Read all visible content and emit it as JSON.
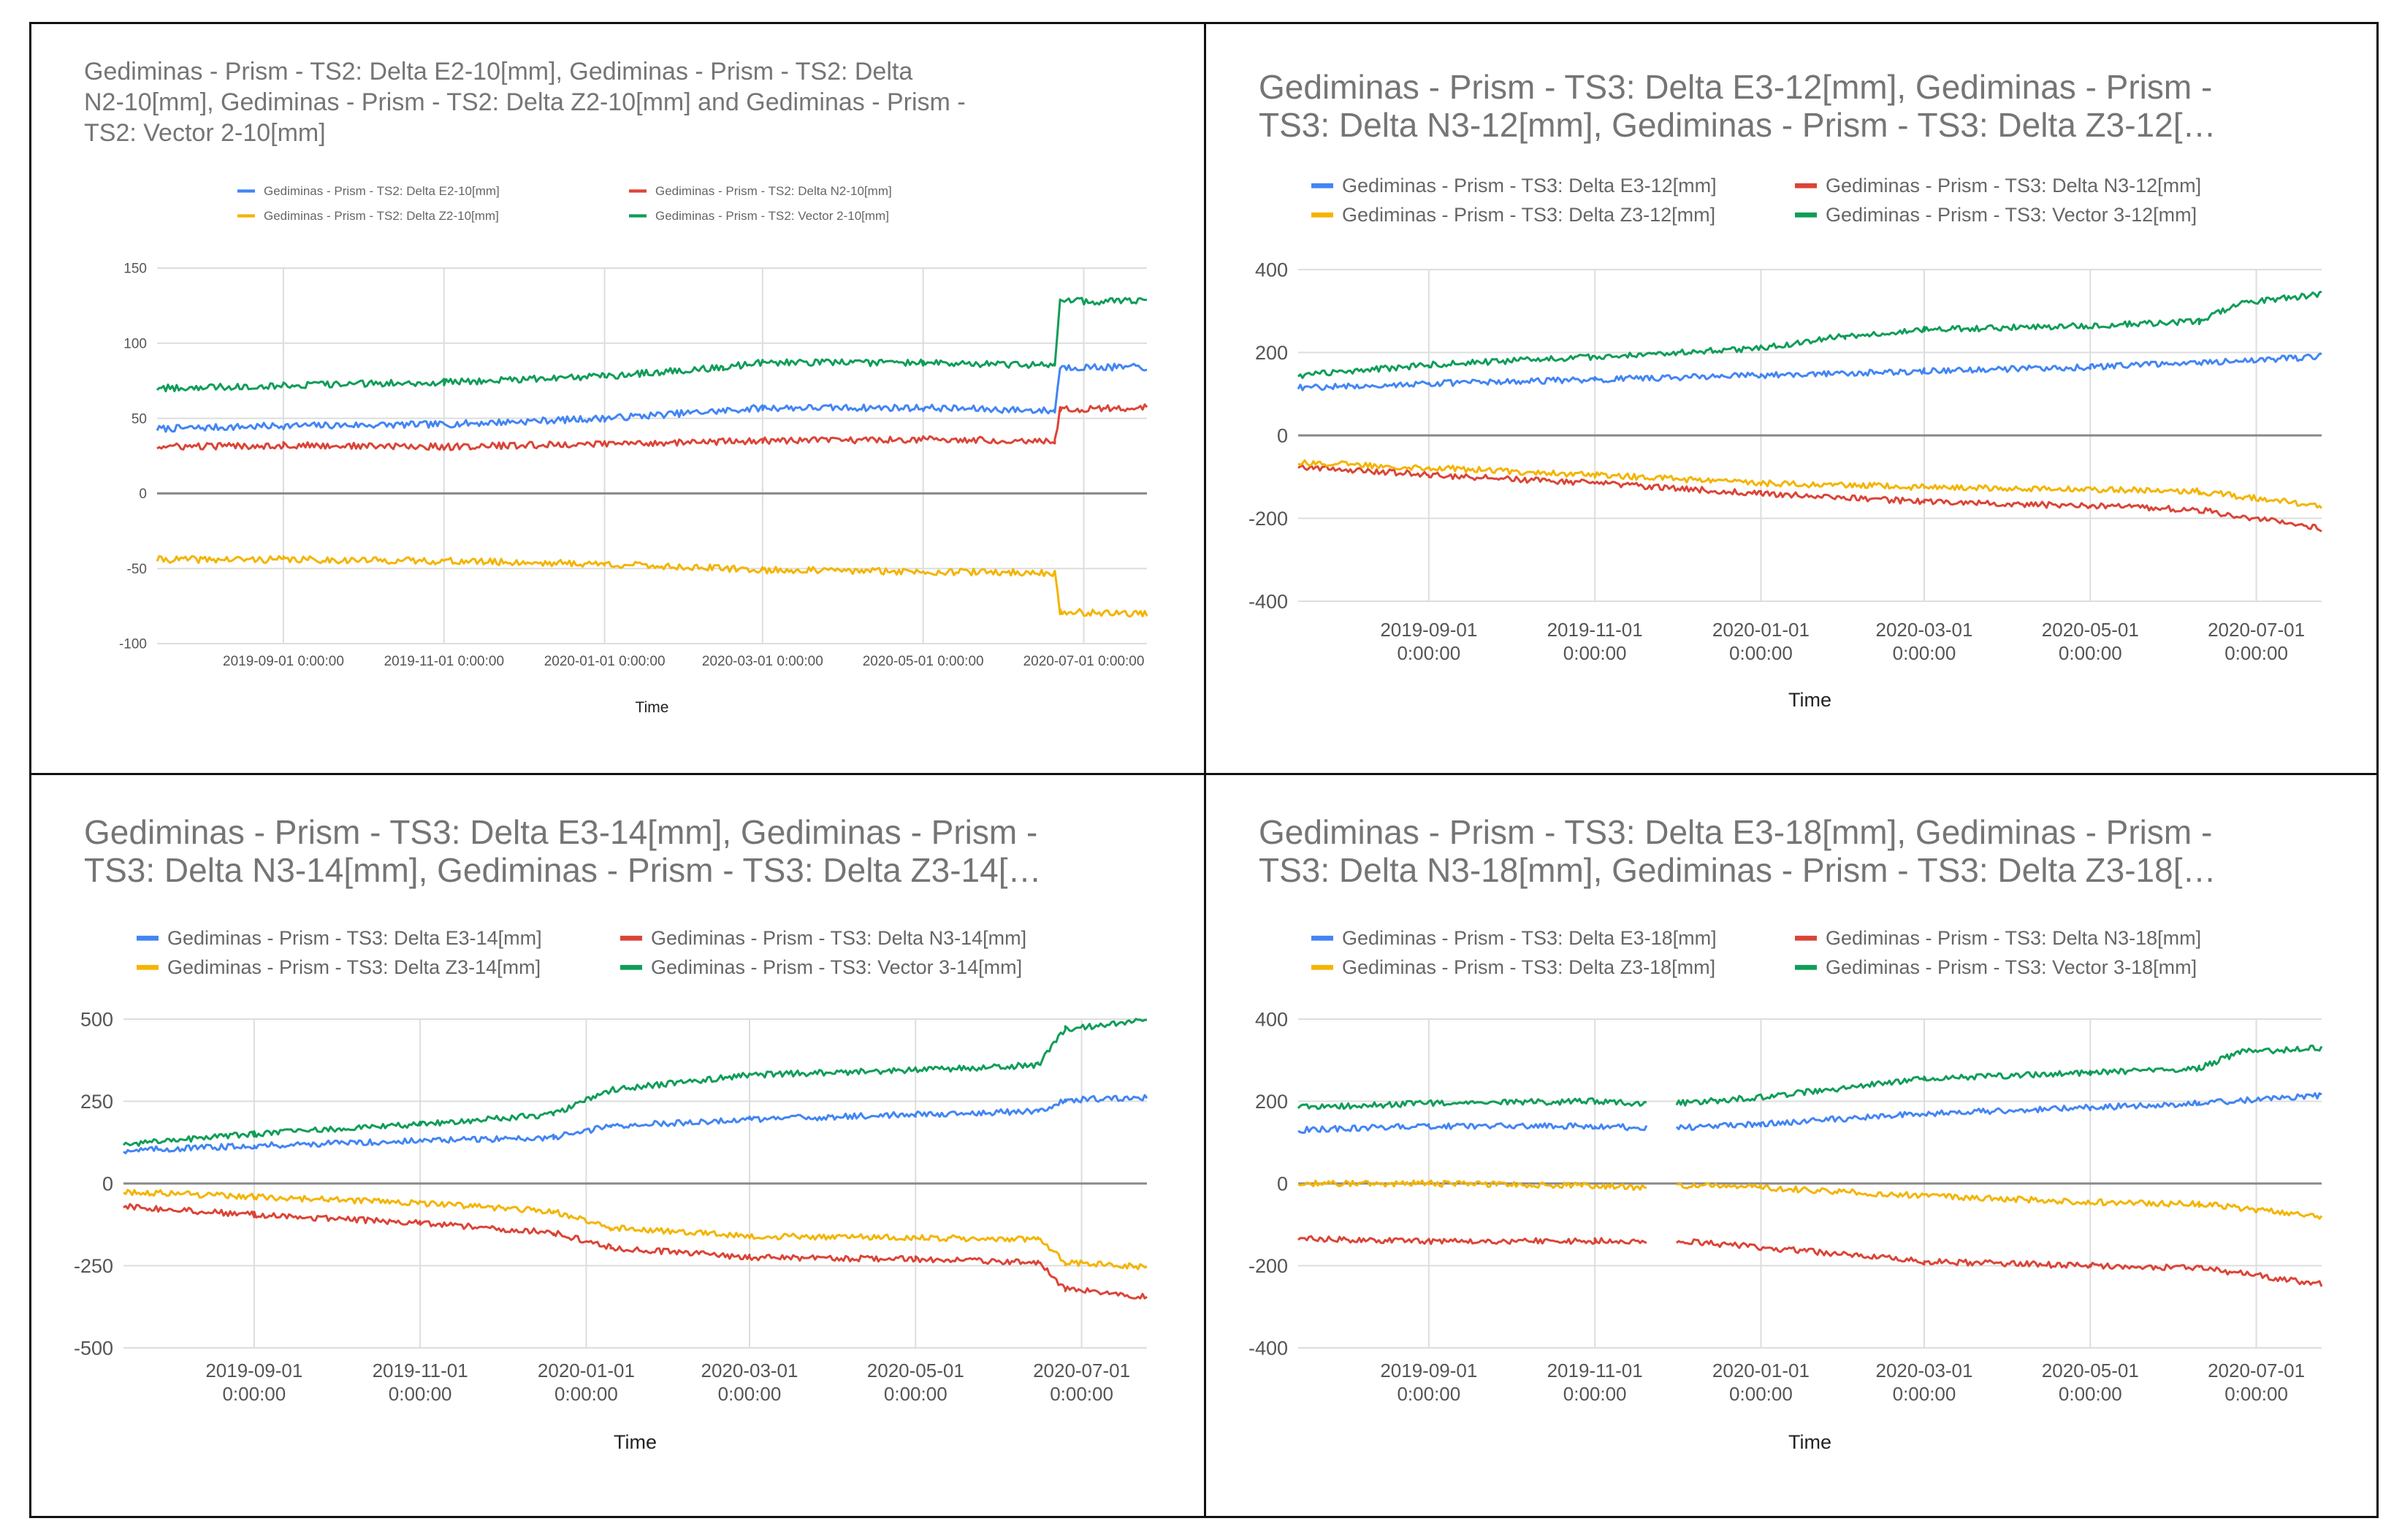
{
  "colors": {
    "blue": "#4285f4",
    "red": "#db4437",
    "yellow": "#f4b400",
    "green": "#0f9d58",
    "grid": "#dddddd",
    "zero": "#888888"
  },
  "chart_data": [
    {
      "type": "line",
      "title_lines": [
        "Gediminas - Prism - TS2: Delta E2-10[mm], Gediminas - Prism - TS2: Delta",
        "N2-10[mm], Gediminas - Prism - TS2: Delta Z2-10[mm] and Gediminas - Prism -",
        "TS2: Vector 2-10[mm]"
      ],
      "xlabel": "Time",
      "x_tick_lines": [
        [
          "2019-09-01 0:00:00"
        ],
        [
          "2019-11-01 0:00:00"
        ],
        [
          "2020-01-01 0:00:00"
        ],
        [
          "2020-03-01 0:00:00"
        ],
        [
          "2020-05-01 0:00:00"
        ],
        [
          "2020-07-01 0:00:00"
        ]
      ],
      "yticks": [
        "150",
        "100",
        "50",
        "0",
        "-50",
        "-100"
      ],
      "ylim": [
        -100,
        150
      ],
      "xlim": [
        "2019-07-15",
        "2020-07-25"
      ],
      "legend_position": "top",
      "series": [
        {
          "name": "Gediminas - Prism - TS2: Delta E2-10[mm]",
          "color": "blue",
          "x": [
            "2019-07-15",
            "2019-09-01",
            "2019-11-01",
            "2020-01-01",
            "2020-02-15",
            "2020-03-01",
            "2020-05-01",
            "2020-06-20",
            "2020-06-22",
            "2020-07-25"
          ],
          "y": [
            43,
            45,
            46,
            50,
            55,
            57,
            57,
            55,
            84,
            84
          ]
        },
        {
          "name": "Gediminas - Prism - TS2: Delta N2-10[mm]",
          "color": "red",
          "x": [
            "2019-07-15",
            "2019-09-01",
            "2019-11-01",
            "2020-01-01",
            "2020-03-01",
            "2020-05-01",
            "2020-06-20",
            "2020-06-22",
            "2020-07-25"
          ],
          "y": [
            31,
            32,
            31,
            33,
            35,
            36,
            35,
            56,
            57
          ]
        },
        {
          "name": "Gediminas - Prism - TS2: Delta Z2-10[mm]",
          "color": "yellow",
          "x": [
            "2019-07-15",
            "2019-09-01",
            "2019-11-01",
            "2020-01-01",
            "2020-03-01",
            "2020-05-01",
            "2020-06-20",
            "2020-06-22",
            "2020-07-25"
          ],
          "y": [
            -44,
            -44,
            -45,
            -47,
            -51,
            -52,
            -53,
            -79,
            -80
          ]
        },
        {
          "name": "Gediminas - Prism - TS2: Vector 2-10[mm]",
          "color": "green",
          "x": [
            "2019-07-15",
            "2019-09-01",
            "2019-11-01",
            "2020-01-01",
            "2020-02-15",
            "2020-03-01",
            "2020-05-01",
            "2020-06-20",
            "2020-06-22",
            "2020-07-25"
          ],
          "y": [
            70,
            72,
            74,
            78,
            84,
            87,
            87,
            85,
            128,
            128
          ]
        }
      ]
    },
    {
      "type": "line",
      "title_lines": [
        "Gediminas - Prism - TS3: Delta E3-12[mm], Gediminas - Prism -",
        "TS3: Delta N3-12[mm], Gediminas - Prism - TS3: Delta Z3-12[…"
      ],
      "xlabel": "Time",
      "x_tick_lines": [
        [
          "2019-09-01",
          "0:00:00"
        ],
        [
          "2019-11-01",
          "0:00:00"
        ],
        [
          "2020-01-01",
          "0:00:00"
        ],
        [
          "2020-03-01",
          "0:00:00"
        ],
        [
          "2020-05-01",
          "0:00:00"
        ],
        [
          "2020-07-01",
          "0:00:00"
        ]
      ],
      "yticks": [
        "400",
        "200",
        "0",
        "-200",
        "-400"
      ],
      "ylim": [
        -400,
        400
      ],
      "xlim": [
        "2019-07-15",
        "2020-07-25"
      ],
      "legend_position": "top",
      "series": [
        {
          "name": "Gediminas - Prism - TS3: Delta E3-12[mm]",
          "color": "blue",
          "x": [
            "2019-07-15",
            "2019-09-01",
            "2019-11-01",
            "2020-01-01",
            "2020-03-01",
            "2020-05-01",
            "2020-06-10",
            "2020-07-25"
          ],
          "y": [
            115,
            125,
            135,
            145,
            155,
            165,
            175,
            190
          ]
        },
        {
          "name": "Gediminas - Prism - TS3: Delta N3-12[mm]",
          "color": "red",
          "x": [
            "2019-07-15",
            "2019-09-01",
            "2019-11-01",
            "2020-01-01",
            "2020-03-01",
            "2020-05-01",
            "2020-06-10",
            "2020-07-25"
          ],
          "y": [
            -75,
            -95,
            -115,
            -140,
            -160,
            -170,
            -180,
            -225
          ]
        },
        {
          "name": "Gediminas - Prism - TS3: Delta Z3-12[mm]",
          "color": "yellow",
          "x": [
            "2019-07-15",
            "2019-09-01",
            "2019-11-01",
            "2020-01-01",
            "2020-03-01",
            "2020-05-01",
            "2020-06-10",
            "2020-07-25"
          ],
          "y": [
            -65,
            -78,
            -95,
            -115,
            -125,
            -130,
            -135,
            -170
          ]
        },
        {
          "name": "Gediminas - Prism - TS3: Vector 3-12[mm]",
          "color": "green",
          "x": [
            "2019-07-15",
            "2019-09-01",
            "2019-11-01",
            "2020-01-01",
            "2020-02-01",
            "2020-03-01",
            "2020-05-01",
            "2020-06-10",
            "2020-06-25",
            "2020-07-25"
          ],
          "y": [
            145,
            170,
            190,
            210,
            240,
            255,
            265,
            275,
            320,
            340
          ]
        }
      ]
    },
    {
      "type": "line",
      "title_lines": [
        "Gediminas - Prism - TS3: Delta E3-14[mm], Gediminas - Prism -",
        "TS3: Delta N3-14[mm], Gediminas - Prism - TS3: Delta Z3-14[…"
      ],
      "xlabel": "Time",
      "x_tick_lines": [
        [
          "2019-09-01",
          "0:00:00"
        ],
        [
          "2019-11-01",
          "0:00:00"
        ],
        [
          "2020-01-01",
          "0:00:00"
        ],
        [
          "2020-03-01",
          "0:00:00"
        ],
        [
          "2020-05-01",
          "0:00:00"
        ],
        [
          "2020-07-01",
          "0:00:00"
        ]
      ],
      "yticks": [
        "500",
        "250",
        "0",
        "-250",
        "-500"
      ],
      "ylim": [
        -500,
        500
      ],
      "xlim": [
        "2019-07-15",
        "2020-07-25"
      ],
      "legend_position": "top",
      "series": [
        {
          "name": "Gediminas - Prism - TS3: Delta E3-14[mm]",
          "color": "blue",
          "x": [
            "2019-07-15",
            "2019-09-01",
            "2019-11-01",
            "2019-12-20",
            "2020-01-10",
            "2020-03-01",
            "2020-05-01",
            "2020-06-15",
            "2020-06-25",
            "2020-07-25"
          ],
          "y": [
            100,
            115,
            130,
            140,
            175,
            195,
            210,
            220,
            255,
            260
          ]
        },
        {
          "name": "Gediminas - Prism - TS3: Delta N3-14[mm]",
          "color": "red",
          "x": [
            "2019-07-15",
            "2019-09-01",
            "2019-11-01",
            "2019-12-20",
            "2020-01-10",
            "2020-03-01",
            "2020-05-01",
            "2020-06-15",
            "2020-06-25",
            "2020-07-25"
          ],
          "y": [
            -70,
            -95,
            -120,
            -150,
            -195,
            -225,
            -230,
            -240,
            -320,
            -345
          ]
        },
        {
          "name": "Gediminas - Prism - TS3: Delta Z3-14[mm]",
          "color": "yellow",
          "x": [
            "2019-07-15",
            "2019-09-01",
            "2019-11-01",
            "2019-12-20",
            "2020-01-10",
            "2020-03-01",
            "2020-05-01",
            "2020-06-15",
            "2020-06-25",
            "2020-07-25"
          ],
          "y": [
            -25,
            -40,
            -60,
            -85,
            -135,
            -160,
            -165,
            -170,
            -240,
            -255
          ]
        },
        {
          "name": "Gediminas - Prism - TS3: Vector 3-14[mm]",
          "color": "green",
          "x": [
            "2019-07-15",
            "2019-09-01",
            "2019-11-01",
            "2019-12-20",
            "2020-01-10",
            "2020-03-01",
            "2020-05-01",
            "2020-06-15",
            "2020-06-25",
            "2020-07-25"
          ],
          "y": [
            120,
            150,
            180,
            210,
            285,
            330,
            345,
            360,
            470,
            495
          ]
        }
      ]
    },
    {
      "type": "line",
      "title_lines": [
        "Gediminas - Prism - TS3:  Delta E3-18[mm], Gediminas - Prism -",
        "TS3:  Delta N3-18[mm], Gediminas - Prism - TS3:  Delta Z3-18[…"
      ],
      "xlabel": "Time",
      "x_tick_lines": [
        [
          "2019-09-01",
          "0:00:00"
        ],
        [
          "2019-11-01",
          "0:00:00"
        ],
        [
          "2020-01-01",
          "0:00:00"
        ],
        [
          "2020-03-01",
          "0:00:00"
        ],
        [
          "2020-05-01",
          "0:00:00"
        ],
        [
          "2020-07-01",
          "0:00:00"
        ]
      ],
      "yticks": [
        "400",
        "200",
        "0",
        "-200",
        "-400"
      ],
      "ylim": [
        -400,
        400
      ],
      "xlim": [
        "2019-07-15",
        "2020-07-25"
      ],
      "legend_position": "top",
      "series": [
        {
          "name": "Gediminas - Prism - TS3:  Delta E3-18[mm]",
          "color": "blue",
          "x": [
            "2019-07-15",
            "2019-09-01",
            "2019-11-01",
            "2019-11-20",
            null,
            "2019-12-01",
            "2020-01-01",
            "2020-03-01",
            "2020-05-01",
            "2020-06-10",
            "2020-07-25"
          ],
          "y": [
            130,
            140,
            140,
            135,
            null,
            135,
            145,
            170,
            185,
            195,
            215
          ]
        },
        {
          "name": "Gediminas - Prism - TS3:  Delta N3-18[mm]",
          "color": "red",
          "x": [
            "2019-07-15",
            "2019-09-01",
            "2019-11-01",
            "2019-11-20",
            null,
            "2019-12-01",
            "2020-01-01",
            "2020-03-01",
            "2020-05-01",
            "2020-06-10",
            "2020-07-25"
          ],
          "y": [
            -135,
            -140,
            -140,
            -140,
            null,
            -140,
            -155,
            -190,
            -200,
            -205,
            -245
          ]
        },
        {
          "name": "Gediminas - Prism - TS3:  Delta Z3-18[mm]",
          "color": "yellow",
          "x": [
            "2019-07-15",
            "2019-09-01",
            "2019-11-01",
            "2019-11-20",
            null,
            "2019-12-01",
            "2020-01-01",
            "2020-03-01",
            "2020-05-01",
            "2020-06-10",
            "2020-07-25"
          ],
          "y": [
            0,
            0,
            -5,
            -10,
            null,
            -5,
            -10,
            -30,
            -45,
            -50,
            -80
          ]
        },
        {
          "name": "Gediminas - Prism - TS3:  Vector 3-18[mm]",
          "color": "green",
          "x": [
            "2019-07-15",
            "2019-09-01",
            "2019-11-01",
            "2019-11-20",
            null,
            "2019-12-01",
            "2020-01-01",
            "2020-03-01",
            "2020-05-01",
            "2020-06-10",
            "2020-06-25",
            "2020-07-25"
          ],
          "y": [
            185,
            195,
            200,
            195,
            null,
            195,
            210,
            255,
            270,
            280,
            320,
            330
          ]
        }
      ]
    }
  ]
}
